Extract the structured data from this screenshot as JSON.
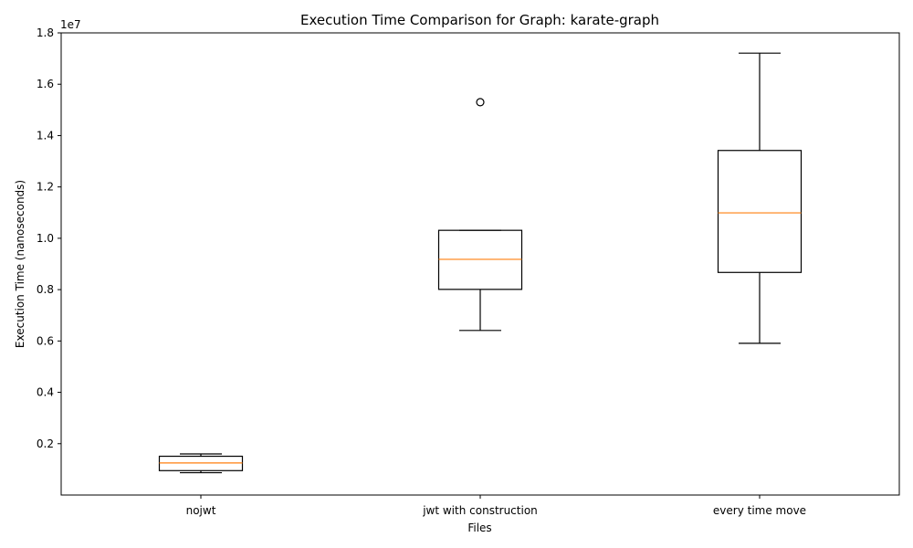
{
  "chart_data": {
    "type": "box",
    "title": "Execution Time Comparison for Graph: karate-graph",
    "xlabel": "Files",
    "ylabel": "Execution Time (nanoseconds)",
    "y_offset_label": "1e7",
    "y_scale": 10000000,
    "ylim": [
      0.0,
      1.8
    ],
    "yticks": [
      "0.2",
      "0.4",
      "0.6",
      "0.8",
      "1.0",
      "1.2",
      "1.4",
      "1.6",
      "1.8"
    ],
    "categories": [
      "nojwt",
      "jwt with construction",
      "every time move"
    ],
    "boxes": [
      {
        "whisker_low": 0.087,
        "q1": 0.095,
        "median": 0.125,
        "q3": 0.151,
        "whisker_high": 0.16,
        "outliers": []
      },
      {
        "whisker_low": 0.641,
        "q1": 0.801,
        "median": 0.918,
        "q3": 1.031,
        "whisker_high": 1.031,
        "outliers": [
          1.53
        ]
      },
      {
        "whisker_low": 0.591,
        "q1": 0.867,
        "median": 1.099,
        "q3": 1.342,
        "whisker_high": 1.721,
        "outliers": []
      }
    ],
    "colors": {
      "box": "#000000",
      "median": "#ff7f0e",
      "axes": "#000000"
    },
    "grid": false
  }
}
